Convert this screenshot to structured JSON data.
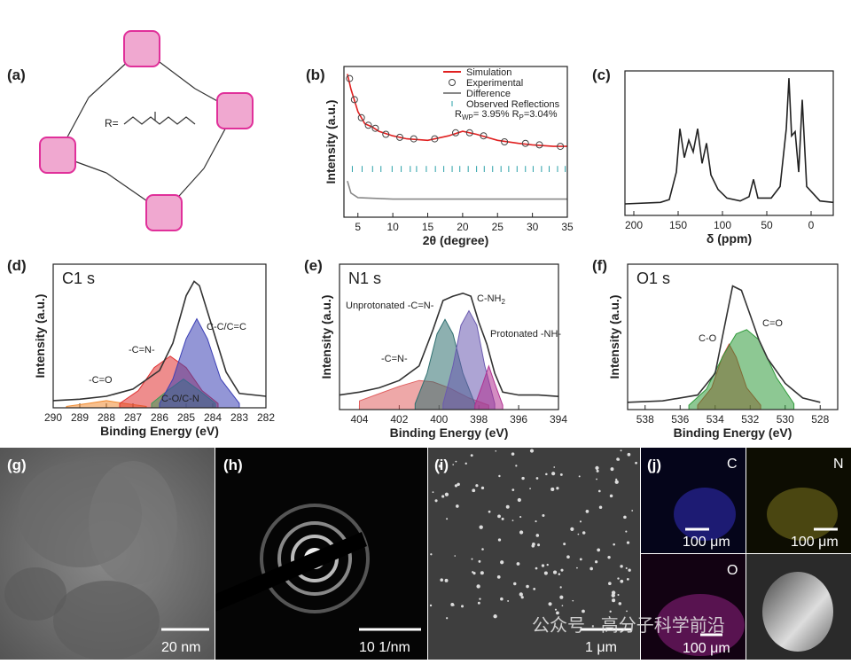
{
  "structure": {
    "label": "(a)",
    "r_label": "R="
  },
  "chart_data": [
    {
      "type": "line",
      "label": "(b)",
      "xlabel": "2θ (degree)",
      "ylabel": "Intensity (a.u.)",
      "xlim": [
        3,
        35
      ],
      "xticks": [
        5,
        10,
        15,
        20,
        25,
        30,
        35
      ],
      "ylim": [
        0,
        100
      ],
      "legend": "upper right",
      "annotation": [
        [
          "R",
          "WP",
          "= 3.95% R",
          "P",
          "=3.04%"
        ]
      ],
      "series": [
        {
          "name": "Simulation",
          "type": "line",
          "color": "#e02020",
          "x": [
            3.5,
            4,
            5,
            6,
            7,
            8,
            10,
            12,
            15,
            18,
            20,
            22,
            25,
            28,
            30,
            33,
            35
          ],
          "values": [
            95,
            85,
            70,
            62,
            60,
            57,
            54,
            52,
            51,
            54,
            57,
            55,
            51,
            49,
            48,
            47,
            47
          ]
        },
        {
          "name": "Experimental",
          "type": "scatter",
          "color": "#444444",
          "x": [
            3.8,
            4.5,
            5.5,
            6.5,
            7.5,
            9,
            11,
            13,
            16,
            19,
            21,
            23,
            26,
            29,
            31,
            34
          ],
          "values": [
            92,
            78,
            66,
            61,
            59,
            55,
            53,
            52,
            52,
            56,
            56,
            54,
            50,
            49,
            48,
            47
          ]
        },
        {
          "name": "Difference",
          "type": "line",
          "color": "#888888",
          "x": [
            3.5,
            4,
            5,
            10,
            20,
            35
          ],
          "values": [
            24,
            16,
            13,
            12,
            12,
            12
          ]
        },
        {
          "name": "Observed Reflections",
          "type": "ticks",
          "color": "#2aa0a8",
          "x": [
            4.2,
            5.6,
            7.1,
            8.3,
            9.9,
            11.2,
            12.5,
            13.4,
            14.8,
            16.1,
            17.3,
            18.5,
            19.6,
            20.8,
            22.0,
            23.1,
            24.3,
            25.5,
            26.6,
            27.8,
            29.0,
            30.1,
            31.3,
            32.4,
            33.6,
            34.7
          ]
        }
      ]
    },
    {
      "type": "line",
      "label": "(c)",
      "xlabel": "δ (ppm)",
      "xlim": [
        210,
        -25
      ],
      "xticks": [
        200,
        150,
        100,
        50,
        0
      ],
      "ylim": [
        0,
        100
      ],
      "series": [
        {
          "type": "line",
          "color": "#222222",
          "x": [
            210,
            170,
            160,
            152,
            148,
            143,
            138,
            133,
            128,
            123,
            118,
            113,
            105,
            95,
            80,
            70,
            65,
            60,
            45,
            35,
            28,
            25,
            22,
            18,
            14,
            10,
            5,
            -10,
            -25
          ],
          "values": [
            8,
            9,
            11,
            30,
            60,
            40,
            52,
            44,
            60,
            36,
            50,
            28,
            18,
            12,
            10,
            13,
            25,
            12,
            12,
            20,
            60,
            95,
            55,
            58,
            30,
            80,
            20,
            10,
            9
          ]
        }
      ]
    },
    {
      "type": "line",
      "label": "(d)",
      "title": "C1 s",
      "xlabel": "Binding Energy (eV)",
      "ylabel": "Intensity (a.u.)",
      "xlim": [
        290,
        282
      ],
      "xticks": [
        290,
        289,
        288,
        287,
        286,
        285,
        284,
        283,
        282
      ],
      "ylim": [
        0,
        100
      ],
      "annotation": [
        [
          "-C=O"
        ],
        [
          "-C=N-"
        ],
        [
          "C-C/C=C"
        ],
        [
          "C-O/C-N"
        ]
      ],
      "series": [
        {
          "type": "area",
          "color": "#f08a30",
          "x": [
            289.5,
            288.7,
            288,
            287.3,
            286.5
          ],
          "values": [
            1,
            3,
            5,
            3,
            1
          ]
        },
        {
          "type": "area",
          "color": "#e03030",
          "x": [
            287.5,
            286.8,
            286.2,
            285.6,
            285,
            284.4,
            283.8
          ],
          "values": [
            3,
            12,
            28,
            36,
            28,
            12,
            3
          ]
        },
        {
          "type": "area",
          "color": "#3a9a5a",
          "x": [
            286.3,
            285.7,
            285.1,
            284.5,
            283.9
          ],
          "values": [
            3,
            12,
            20,
            12,
            3
          ]
        },
        {
          "type": "area",
          "color": "#3b3fb5",
          "x": [
            286,
            285.5,
            285,
            284.6,
            284.2,
            283.7,
            283
          ],
          "values": [
            3,
            20,
            48,
            62,
            48,
            20,
            3
          ]
        },
        {
          "type": "line",
          "color": "#333333",
          "x": [
            290,
            289,
            288,
            287,
            286,
            285.5,
            285,
            284.7,
            284.5,
            284,
            283.5,
            283,
            282
          ],
          "values": [
            5,
            6,
            8,
            13,
            26,
            45,
            78,
            88,
            85,
            55,
            25,
            10,
            8
          ]
        }
      ]
    },
    {
      "type": "line",
      "label": "(e)",
      "title": "N1 s",
      "xlabel": "Binding Energy (eV)",
      "ylabel": "Intensity (a.u.)",
      "xlim": [
        405,
        394
      ],
      "xticks": [
        404,
        402,
        400,
        398,
        396,
        394
      ],
      "ylim": [
        0,
        100
      ],
      "annotation": [
        [
          "Unprotonated -C=N-"
        ],
        [
          "C-NH",
          "2"
        ],
        [
          "Protonated -NH-"
        ],
        [
          "-C=N-"
        ]
      ],
      "series": [
        {
          "type": "area",
          "color": "#e06060",
          "x": [
            404,
            403,
            402,
            401,
            400.3,
            399.5,
            398.5,
            397.5
          ],
          "values": [
            6,
            11,
            16,
            20,
            19,
            15,
            8,
            3
          ]
        },
        {
          "type": "area",
          "color": "#2f6f70",
          "x": [
            401.2,
            400.6,
            400.1,
            399.7,
            399.3,
            398.8,
            398.2
          ],
          "values": [
            4,
            25,
            52,
            62,
            52,
            25,
            4
          ]
        },
        {
          "type": "area",
          "color": "#6a5ab0",
          "x": [
            399.8,
            399.3,
            398.9,
            398.5,
            398.1,
            397.7,
            397.2
          ],
          "values": [
            4,
            30,
            58,
            68,
            58,
            30,
            4
          ]
        },
        {
          "type": "area",
          "color": "#b03090",
          "x": [
            398.2,
            397.8,
            397.5,
            397.2,
            396.8
          ],
          "values": [
            3,
            18,
            30,
            18,
            3
          ]
        },
        {
          "type": "line",
          "color": "#333333",
          "x": [
            405,
            404,
            403,
            402,
            401,
            400.3,
            399.8,
            399.3,
            398.8,
            398.4,
            398,
            397.6,
            397.2,
            396.8,
            396,
            395,
            394
          ],
          "values": [
            10,
            12,
            15,
            20,
            30,
            55,
            75,
            78,
            80,
            78,
            60,
            45,
            25,
            12,
            10,
            10,
            9
          ]
        }
      ]
    },
    {
      "type": "line",
      "label": "(f)",
      "title": "O1 s",
      "xlabel": "Binding Energy (eV)",
      "ylabel": "Intensity (a.u.)",
      "xlim": [
        539,
        527
      ],
      "xticks": [
        538,
        536,
        534,
        532,
        530,
        528
      ],
      "ylim": [
        0,
        100
      ],
      "annotation": [
        [
          "C-O"
        ],
        [
          "C=O"
        ]
      ],
      "series": [
        {
          "type": "area",
          "color": "#e03030",
          "x": [
            535,
            534.2,
            533.6,
            533.2,
            532.8,
            532.2,
            531.4
          ],
          "values": [
            3,
            15,
            36,
            45,
            36,
            15,
            3
          ]
        },
        {
          "type": "area",
          "color": "#2f9a3a",
          "x": [
            535.5,
            534.5,
            533.5,
            532.8,
            532.2,
            531.5,
            530.5,
            529.5
          ],
          "values": [
            3,
            14,
            38,
            52,
            55,
            48,
            22,
            4
          ]
        },
        {
          "type": "line",
          "color": "#333333",
          "x": [
            539,
            537,
            535,
            534,
            533.5,
            533,
            532.5,
            532,
            531.5,
            531,
            530,
            529,
            528
          ],
          "values": [
            5,
            6,
            10,
            25,
            55,
            85,
            82,
            65,
            48,
            35,
            18,
            8,
            5
          ]
        }
      ]
    }
  ],
  "images": [
    {
      "label": "(g)",
      "scale_bar": "20 nm"
    },
    {
      "label": "(h)",
      "scale_bar": "10 1/nm"
    },
    {
      "label": "(i)",
      "scale_bar": "1 μm"
    },
    {
      "label": "(j)",
      "maps": [
        {
          "element": "C",
          "scale_bar": "100 μm"
        },
        {
          "element": "N",
          "scale_bar": "100 μm"
        },
        {
          "element": "O",
          "scale_bar": "100 μm"
        }
      ]
    }
  ],
  "watermark": "公众号 · 高分子科学前沿"
}
